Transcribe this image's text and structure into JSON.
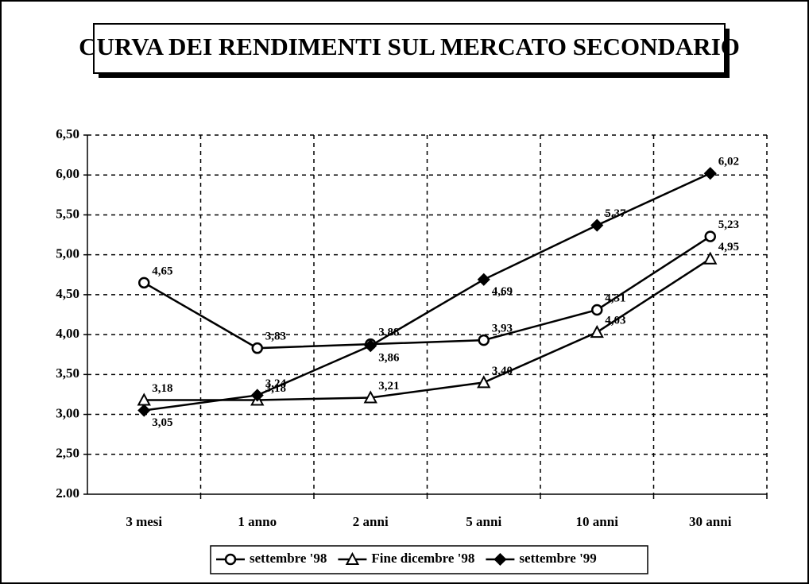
{
  "chart_data": {
    "type": "line",
    "title": "CURVA DEI RENDIMENTI SUL MERCATO SECONDARIO",
    "categories": [
      "3 mesi",
      "1 anno",
      "2 anni",
      "5 anni",
      "10 anni",
      "30 anni"
    ],
    "series": [
      {
        "name": "settembre '98",
        "color": "#000000",
        "marker": "circle",
        "values": [
          4.65,
          3.83,
          3.88,
          3.93,
          4.31,
          5.23
        ],
        "value_labels": [
          "4,65",
          "3,83",
          "3,88",
          "3,93",
          "4,31",
          "5,23"
        ]
      },
      {
        "name": "Fine dicembre '98",
        "color": "#000000",
        "marker": "triangle",
        "values": [
          3.18,
          3.18,
          3.21,
          3.4,
          4.03,
          4.95
        ],
        "value_labels": [
          "3,18",
          "3,18",
          "3,21",
          "3,40",
          "4,03",
          "4,95"
        ]
      },
      {
        "name": "settembre '99",
        "color": "#000000",
        "marker": "diamond",
        "values": [
          3.05,
          3.24,
          3.86,
          4.69,
          5.37,
          6.02
        ],
        "value_labels": [
          "3,05",
          "3,24",
          "3,86",
          "4,69",
          "5,37",
          "6,02"
        ]
      }
    ],
    "ylim": [
      2,
      6.5
    ],
    "yticks": [
      {
        "value": 2,
        "label": "2.00"
      },
      {
        "value": 2.5,
        "label": "2,50"
      },
      {
        "value": 3,
        "label": "3,00"
      },
      {
        "value": 3.5,
        "label": "3,50"
      },
      {
        "value": 4,
        "label": "4,00"
      },
      {
        "value": 4.5,
        "label": "4,50"
      },
      {
        "value": 5,
        "label": "5,00"
      },
      {
        "value": 5.5,
        "label": "5,50"
      },
      {
        "value": 6,
        "label": "6,00"
      },
      {
        "value": 6.5,
        "label": "6,50"
      }
    ],
    "grid": true,
    "legend": "bottom"
  }
}
